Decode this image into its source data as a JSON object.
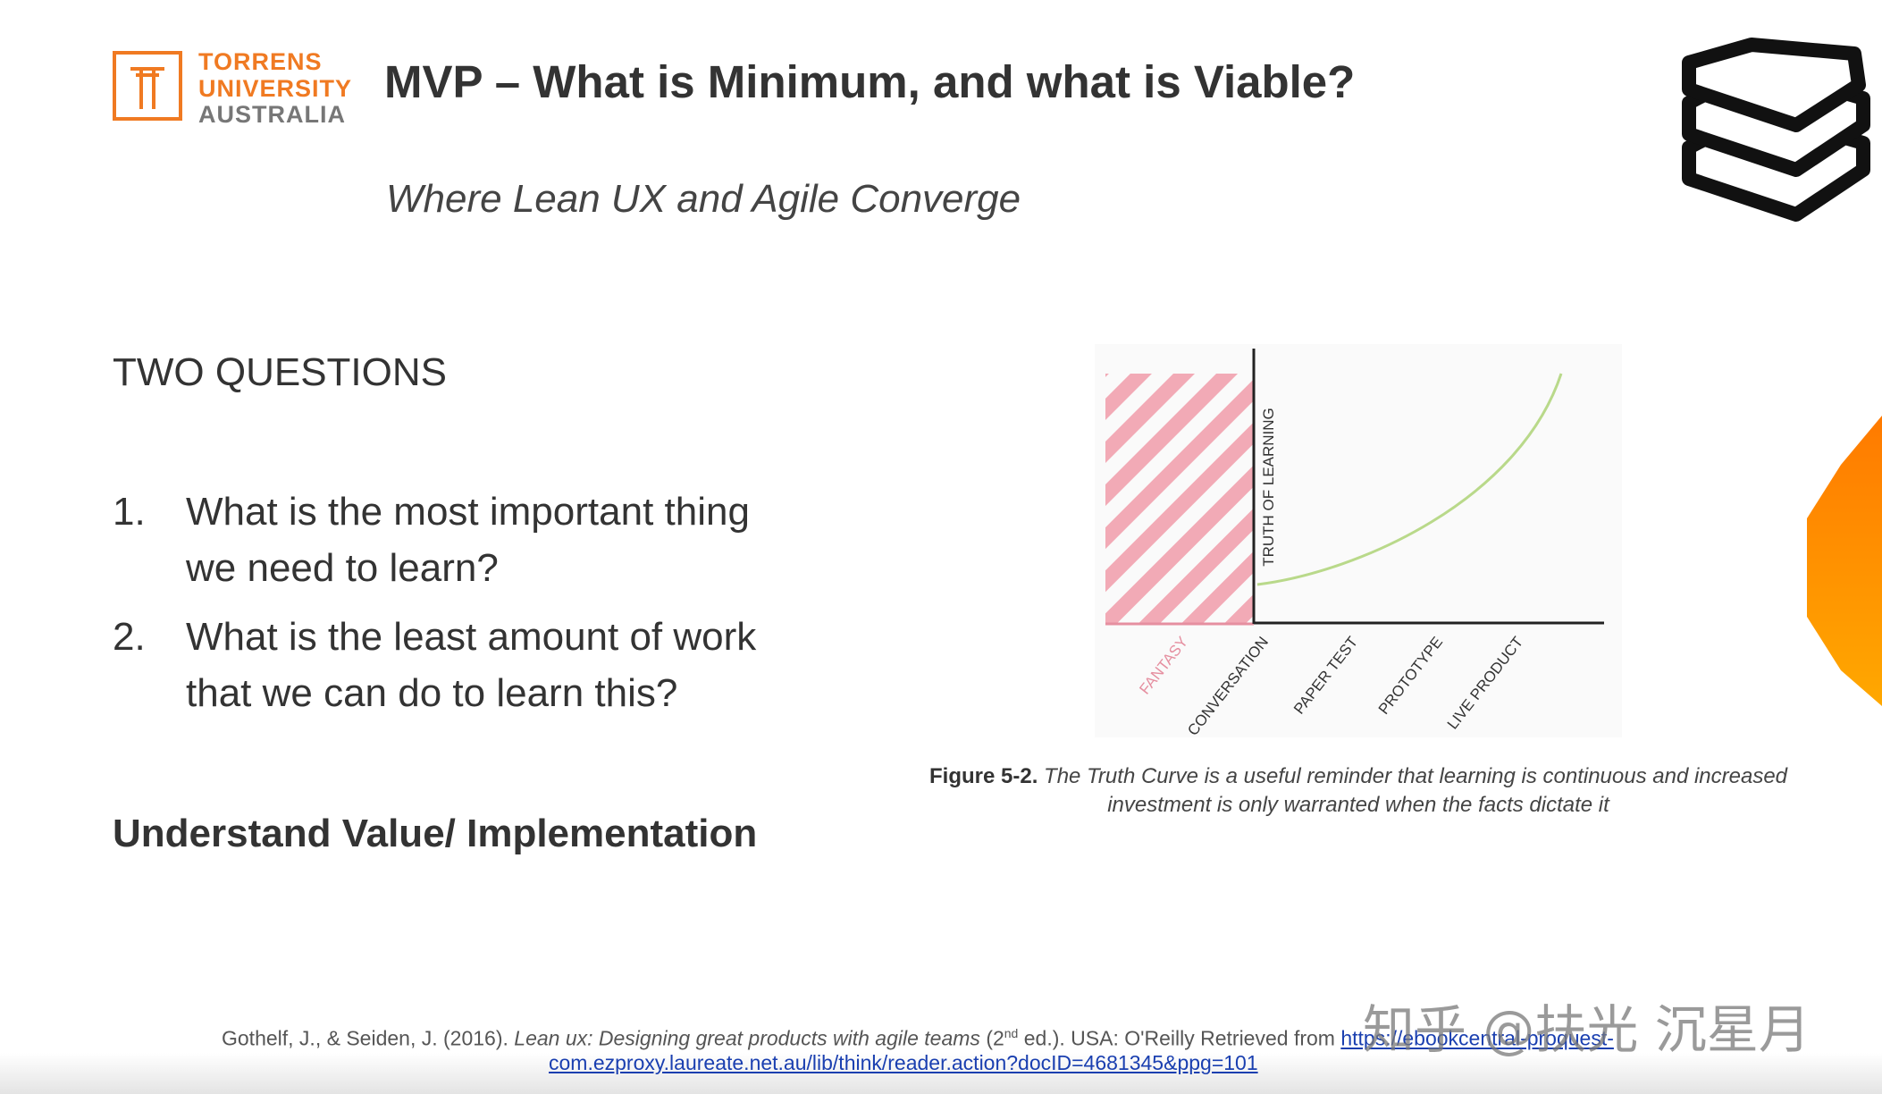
{
  "logo": {
    "line1": "TORRENS",
    "line2": "UNIVERSITY",
    "line3": "AUSTRALIA"
  },
  "header": {
    "title": "MVP – What is Minimum, and what is Viable?",
    "subtitle": "Where Lean UX and Agile Converge"
  },
  "section": {
    "heading": "TWO QUESTIONS",
    "questions": [
      {
        "number": "1.",
        "lines": [
          "What is the most important thing",
          "we need to learn?"
        ]
      },
      {
        "number": "2.",
        "lines": [
          "What is the least amount of work",
          "that we can do to learn this?"
        ]
      }
    ],
    "conclusion": "Understand Value/ Implementation"
  },
  "figure": {
    "y_axis_label": "TRUTH OF LEARNING",
    "stages": [
      "FANTASY",
      "CONVERSATION",
      "PAPER TEST",
      "PROTOTYPE",
      "LIVE PRODUCT"
    ],
    "caption_label": "Figure 5-2.",
    "caption_lines": [
      "The Truth Curve is a useful reminder that learning is continuous and increased",
      "investment is only warranted when the facts dictate it"
    ]
  },
  "reference": {
    "authors": "Gothelf, J., & Seiden, J. (2016).",
    "book_title": "Lean ux: Designing great products with agile teams",
    "edition_before": "(2",
    "edition_sup": "nd",
    "edition_after": "ed.). USA: O'Reilly Retrieved from",
    "link_lines": [
      "https://ebookcentral-proquest-",
      "com.ezproxy.laureate.net.au/lib/think/reader.action?docID=4681345&ppg=101"
    ]
  },
  "watermark": "知乎 @扶光 沉星月"
}
